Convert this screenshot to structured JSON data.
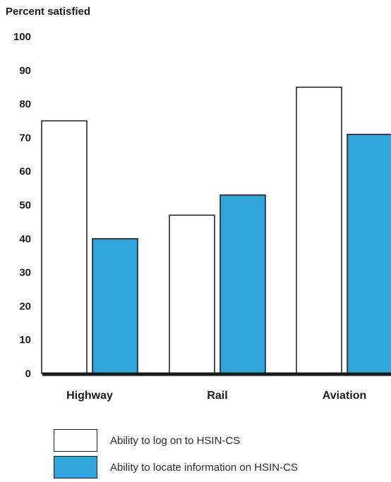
{
  "chart_data": {
    "type": "bar",
    "ylabel": "Percent satisfied",
    "xlabel": "",
    "title": "",
    "categories": [
      "Highway",
      "Rail",
      "Aviation"
    ],
    "ylim": [
      0,
      100
    ],
    "yticks": [
      "0",
      "10",
      "20",
      "30",
      "40",
      "50",
      "60",
      "70",
      "80",
      "90",
      "100"
    ],
    "series": [
      {
        "name": "Ability to log on to HSIN-CS",
        "values": [
          75,
          47,
          85
        ],
        "color": "#ffffff"
      },
      {
        "name": "Ability to locate information on HSIN-CS",
        "values": [
          40,
          53,
          71
        ],
        "color": "#2fa4d9"
      }
    ],
    "grid": false,
    "legend_position": "bottom-left"
  }
}
